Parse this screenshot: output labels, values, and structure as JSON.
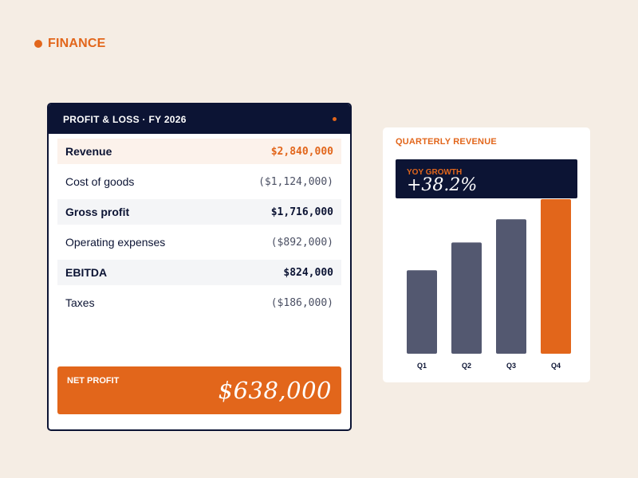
{
  "section": {
    "label": "FINANCE"
  },
  "pl": {
    "title": "PROFIT & LOSS · FY 2026",
    "rows": [
      {
        "label": "Revenue",
        "value": "$2,840,000"
      },
      {
        "label": "Cost of goods",
        "value": "($1,124,000)"
      },
      {
        "label": "Gross profit",
        "value": "$1,716,000"
      },
      {
        "label": "Operating expenses",
        "value": "($892,000)"
      },
      {
        "label": "EBITDA",
        "value": "$824,000"
      },
      {
        "label": "Taxes",
        "value": "($186,000)"
      }
    ],
    "net_label": "NET PROFIT",
    "net_value": "$638,000"
  },
  "revenue_card": {
    "title": "QUARTERLY REVENUE",
    "growth_label": "YOY GROWTH",
    "growth_value": "+38.2%"
  },
  "colors": {
    "accent": "#e2661b",
    "navy": "#0c1434",
    "bar": "#535870",
    "background": "#f5ede4"
  },
  "chart_data": {
    "type": "bar",
    "categories": [
      "Q1",
      "Q2",
      "Q3",
      "Q4"
    ],
    "values": [
      54,
      72,
      87,
      100
    ],
    "ylim": [
      0,
      100
    ],
    "highlight": "Q4",
    "grid": false
  }
}
